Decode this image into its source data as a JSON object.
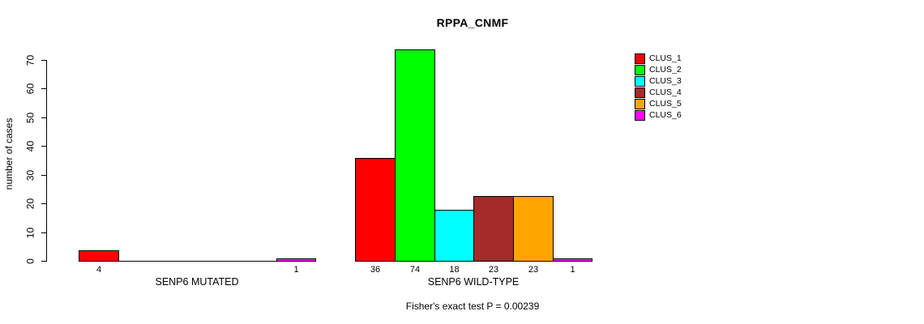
{
  "chart_data": {
    "type": "bar",
    "title": "RPPA_CNMF",
    "ylabel": "number of cases",
    "xlabel": "",
    "ylim": [
      0,
      70
    ],
    "yticks": [
      0,
      10,
      20,
      30,
      40,
      50,
      60,
      70
    ],
    "categories": [
      "SENP6 MUTATED",
      "SENP6 WILD-TYPE"
    ],
    "series": [
      {
        "name": "CLUS_1",
        "color": "#FF0000",
        "values": [
          4,
          36
        ]
      },
      {
        "name": "CLUS_2",
        "color": "#00FF00",
        "values": [
          0,
          74
        ]
      },
      {
        "name": "CLUS_3",
        "color": "#00FFFF",
        "values": [
          0,
          18
        ]
      },
      {
        "name": "CLUS_4",
        "color": "#A52A2A",
        "values": [
          0,
          23
        ]
      },
      {
        "name": "CLUS_5",
        "color": "#FFA500",
        "values": [
          0,
          23
        ]
      },
      {
        "name": "CLUS_6",
        "color": "#FF00FF",
        "values": [
          1,
          1
        ]
      }
    ],
    "bar_value_labels": {
      "SENP6 MUTATED": [
        4,
        1
      ],
      "SENP6 WILD-TYPE": [
        36,
        74,
        18,
        23,
        23,
        1
      ]
    },
    "annotation": "Fisher's exact test P = 0.00239",
    "legend_position": "right",
    "grid": false,
    "background_color": "#ffffff",
    "bar_border_color": "#000000"
  }
}
